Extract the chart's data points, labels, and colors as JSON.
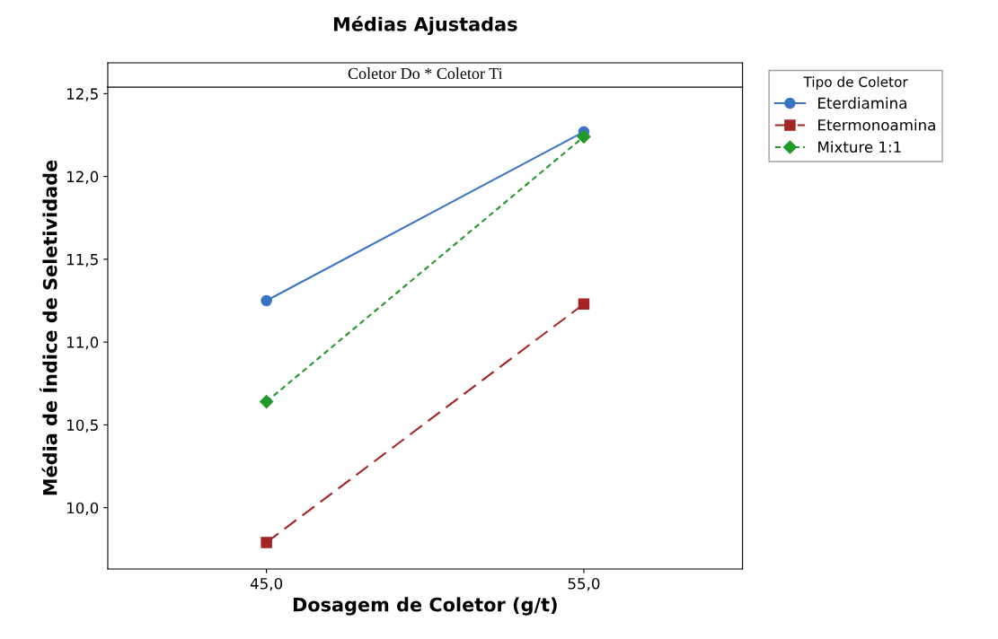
{
  "chart_data": {
    "type": "line",
    "title": "Médias Ajustadas",
    "xlabel": "Dosagem de Coletor (g/t)",
    "ylabel": "Média de Índice de Seletividade",
    "legend_title": "Tipo de Coletor",
    "annotations": [
      "Coletor Do * Coletor Ti"
    ],
    "x": [
      45,
      55
    ],
    "xlim": [
      40,
      60
    ],
    "xticks": [
      {
        "value": 45,
        "label": "45,0"
      },
      {
        "value": 55,
        "label": "55,0"
      }
    ],
    "ylim": [
      9.63,
      12.54
    ],
    "yticks": [
      {
        "value": 10,
        "label": "10,0"
      },
      {
        "value": 10.5,
        "label": "10,5"
      },
      {
        "value": 11,
        "label": "11,0"
      },
      {
        "value": 11.5,
        "label": "11,5"
      },
      {
        "value": 12,
        "label": "12,0"
      },
      {
        "value": 12.5,
        "label": "12,5"
      }
    ],
    "grid": false,
    "legend": "top right",
    "series": [
      {
        "name": "Eterdiamina",
        "color": "#3a74c4",
        "values": [
          11.25,
          12.27
        ],
        "marker": "circle",
        "line_style": "solid"
      },
      {
        "name": "Etermonoamina",
        "color": "#a52424",
        "values": [
          9.79,
          11.23
        ],
        "marker": "square",
        "line_style": "dashed"
      },
      {
        "name": "Mixture 1:1",
        "color": "#229a2a",
        "values": [
          10.64,
          12.24
        ],
        "marker": "diamond",
        "line_style": "dotted"
      }
    ]
  }
}
